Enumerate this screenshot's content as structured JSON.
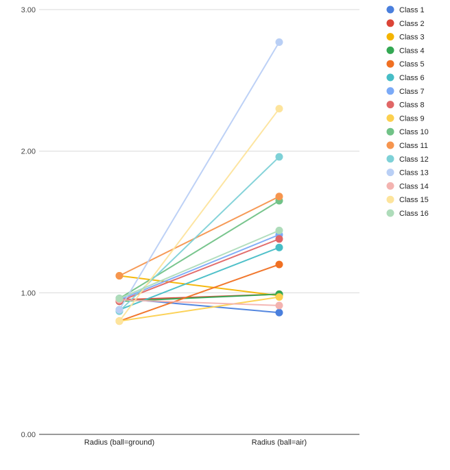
{
  "chart_data": {
    "type": "line",
    "categories": [
      "Radius (ball=ground)",
      "Radius (ball=air)"
    ],
    "ylim": [
      0,
      3
    ],
    "yticks": [
      0,
      1,
      2,
      3
    ],
    "ytick_labels": [
      "0.00",
      "1.00",
      "2.00",
      "3.00"
    ],
    "grid": true,
    "legend_position": "right",
    "series": [
      {
        "name": "Class 1",
        "color": "#4a7fdd",
        "values": [
          0.96,
          0.86
        ]
      },
      {
        "name": "Class 2",
        "color": "#db4437",
        "values": [
          0.95,
          0.99
        ]
      },
      {
        "name": "Class 3",
        "color": "#f4b400",
        "values": [
          1.12,
          0.98
        ]
      },
      {
        "name": "Class 4",
        "color": "#34a853",
        "values": [
          0.94,
          0.99
        ]
      },
      {
        "name": "Class 5",
        "color": "#f07022",
        "values": [
          0.8,
          1.2
        ]
      },
      {
        "name": "Class 6",
        "color": "#46bdc6",
        "values": [
          0.88,
          1.32
        ]
      },
      {
        "name": "Class 7",
        "color": "#7baaf7",
        "values": [
          0.95,
          1.41
        ]
      },
      {
        "name": "Class 8",
        "color": "#e06666",
        "values": [
          0.94,
          1.38
        ]
      },
      {
        "name": "Class 9",
        "color": "#fcd04f",
        "values": [
          0.8,
          0.97
        ]
      },
      {
        "name": "Class 10",
        "color": "#71c287",
        "values": [
          0.96,
          1.65
        ]
      },
      {
        "name": "Class 11",
        "color": "#f6954e",
        "values": [
          1.12,
          1.68
        ]
      },
      {
        "name": "Class 12",
        "color": "#7ed1d7",
        "values": [
          0.87,
          1.96
        ]
      },
      {
        "name": "Class 13",
        "color": "#b9cff5",
        "values": [
          0.88,
          2.77
        ]
      },
      {
        "name": "Class 14",
        "color": "#f3b3b0",
        "values": [
          0.95,
          0.91
        ]
      },
      {
        "name": "Class 15",
        "color": "#fde49c",
        "values": [
          0.8,
          2.3
        ]
      },
      {
        "name": "Class 16",
        "color": "#aedcba",
        "values": [
          0.96,
          1.44
        ]
      }
    ]
  }
}
